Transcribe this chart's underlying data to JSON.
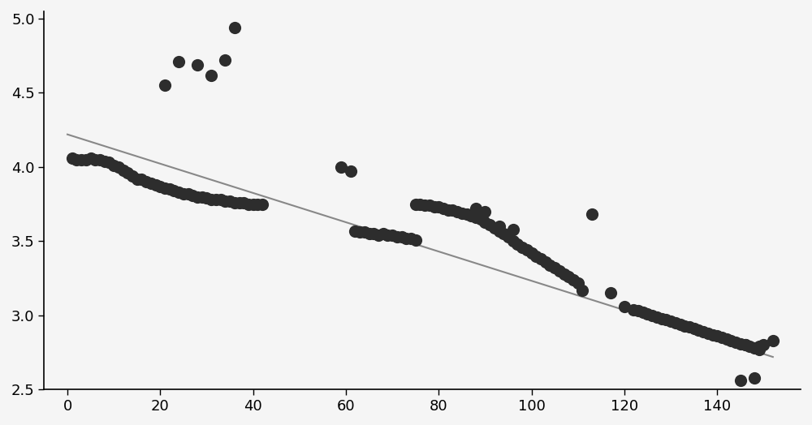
{
  "scatter_x": [
    1,
    2,
    3,
    4,
    5,
    6,
    7,
    8,
    9,
    10,
    11,
    12,
    13,
    14,
    15,
    16,
    17,
    18,
    19,
    20,
    21,
    22,
    23,
    24,
    25,
    26,
    27,
    28,
    29,
    30,
    31,
    32,
    33,
    34,
    35,
    36,
    37,
    38,
    39,
    40,
    41,
    42,
    21,
    24,
    28,
    31,
    34,
    36,
    59,
    61,
    62,
    63,
    64,
    65,
    66,
    67,
    68,
    69,
    70,
    71,
    72,
    73,
    74,
    75,
    75,
    76,
    77,
    78,
    79,
    80,
    81,
    82,
    83,
    84,
    85,
    86,
    87,
    88,
    89,
    90,
    91,
    92,
    93,
    94,
    95,
    96,
    97,
    98,
    99,
    100,
    101,
    102,
    103,
    104,
    105,
    106,
    107,
    108,
    109,
    110,
    88,
    90,
    93,
    96,
    111,
    113,
    117,
    120,
    122,
    123,
    124,
    125,
    126,
    127,
    128,
    129,
    130,
    131,
    132,
    133,
    134,
    135,
    136,
    137,
    138,
    139,
    140,
    141,
    142,
    143,
    144,
    145,
    146,
    147,
    148,
    149,
    146,
    149,
    150,
    152,
    145,
    148
  ],
  "scatter_y": [
    4.06,
    4.05,
    4.05,
    4.05,
    4.06,
    4.05,
    4.05,
    4.04,
    4.03,
    4.01,
    4.0,
    3.98,
    3.96,
    3.94,
    3.92,
    3.92,
    3.9,
    3.89,
    3.88,
    3.87,
    3.86,
    3.85,
    3.84,
    3.83,
    3.82,
    3.82,
    3.81,
    3.8,
    3.8,
    3.79,
    3.78,
    3.78,
    3.78,
    3.77,
    3.77,
    3.76,
    3.76,
    3.76,
    3.75,
    3.75,
    3.75,
    3.75,
    4.55,
    4.71,
    4.69,
    4.62,
    4.72,
    4.94,
    4.0,
    3.97,
    3.57,
    3.56,
    3.56,
    3.55,
    3.55,
    3.54,
    3.55,
    3.54,
    3.54,
    3.53,
    3.53,
    3.52,
    3.52,
    3.51,
    3.75,
    3.75,
    3.74,
    3.74,
    3.73,
    3.73,
    3.72,
    3.71,
    3.71,
    3.7,
    3.69,
    3.68,
    3.67,
    3.66,
    3.65,
    3.63,
    3.61,
    3.59,
    3.57,
    3.55,
    3.53,
    3.5,
    3.48,
    3.46,
    3.44,
    3.42,
    3.4,
    3.38,
    3.36,
    3.34,
    3.32,
    3.3,
    3.28,
    3.26,
    3.24,
    3.22,
    3.72,
    3.7,
    3.6,
    3.58,
    3.17,
    3.68,
    3.15,
    3.06,
    3.04,
    3.03,
    3.02,
    3.01,
    3.0,
    2.99,
    2.98,
    2.97,
    2.96,
    2.95,
    2.94,
    2.93,
    2.92,
    2.91,
    2.9,
    2.89,
    2.88,
    2.87,
    2.86,
    2.85,
    2.84,
    2.83,
    2.82,
    2.81,
    2.8,
    2.79,
    2.78,
    2.77,
    2.8,
    2.79,
    2.8,
    2.83,
    2.56,
    2.58
  ],
  "trend_x": [
    0,
    152
  ],
  "trend_y": [
    4.22,
    2.72
  ],
  "dot_color": "#2d2d2d",
  "line_color": "#888888",
  "dot_size": 120,
  "line_width": 1.5,
  "xlim": [
    -5,
    158
  ],
  "ylim": [
    2.5,
    5.05
  ],
  "xticks": [
    0,
    20,
    40,
    60,
    80,
    100,
    120,
    140
  ],
  "yticks": [
    2.5,
    3.0,
    3.5,
    4.0,
    4.5,
    5.0
  ],
  "bg_color": "#f5f5f5",
  "figsize": [
    10.0,
    5.24
  ],
  "dpi": 100
}
